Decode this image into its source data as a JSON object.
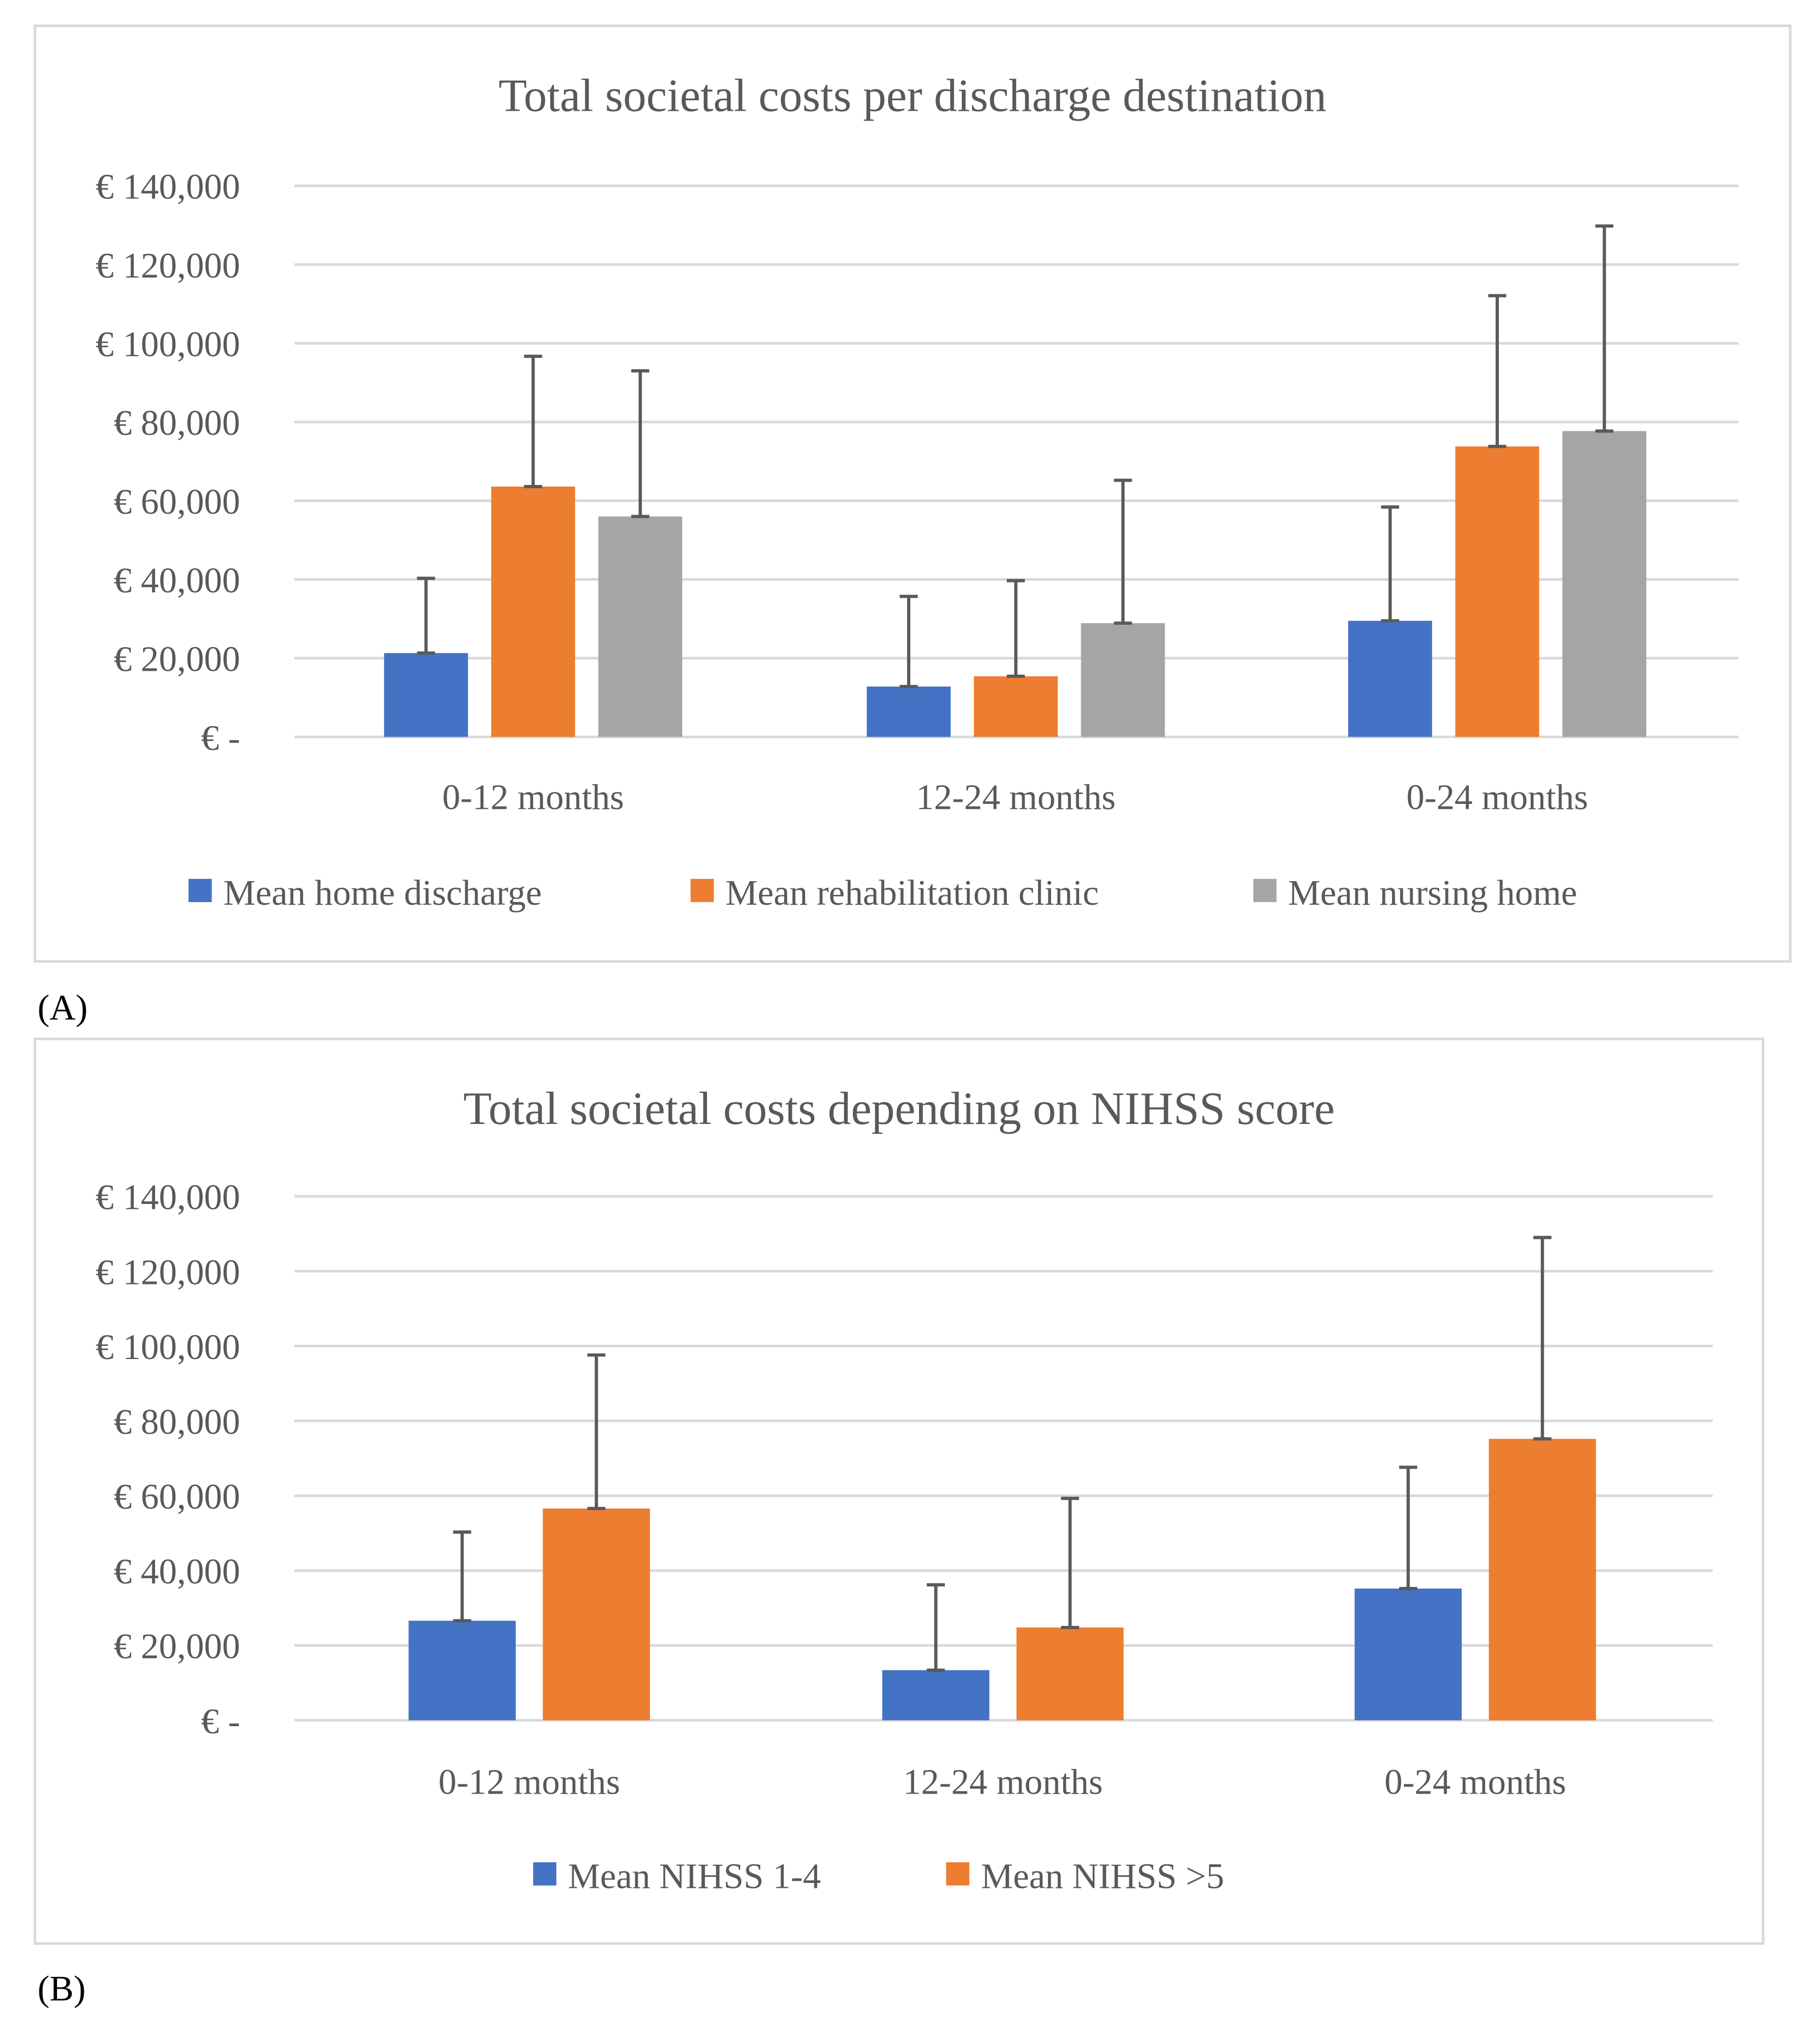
{
  "chart_data": [
    {
      "type": "bar",
      "panel_label": "(A)",
      "title": "Total societal costs per discharge destination",
      "xlabel": "",
      "ylabel": "",
      "ylim": [
        0,
        140000
      ],
      "yticks": [
        0,
        20000,
        40000,
        60000,
        80000,
        100000,
        120000,
        140000
      ],
      "ytick_labels": [
        "€ -",
        "€ 20,000",
        "€ 40,000",
        "€ 60,000",
        "€ 80,000",
        "€ 100,000",
        "€ 120,000",
        "€ 140,000"
      ],
      "grid": true,
      "legend_position": "bottom",
      "categories": [
        "0-12 months",
        "12-24 months",
        "0-24 months"
      ],
      "series": [
        {
          "name": "Mean home discharge",
          "color": "#4472C4",
          "values": [
            21300,
            12800,
            29500
          ],
          "error_upper": [
            40300,
            35700,
            58400
          ]
        },
        {
          "name": "Mean rehabilitation clinic",
          "color": "#ED7D31",
          "values": [
            63600,
            15400,
            73800
          ],
          "error_upper": [
            96700,
            39700,
            112100
          ]
        },
        {
          "name": "Mean nursing home",
          "color": "#A5A5A5",
          "values": [
            56000,
            28900,
            77700
          ],
          "error_upper": [
            93000,
            65200,
            129800
          ]
        }
      ]
    },
    {
      "type": "bar",
      "panel_label": "(B)",
      "title": "Total societal costs depending on NIHSS score",
      "xlabel": "",
      "ylabel": "",
      "ylim": [
        0,
        140000
      ],
      "yticks": [
        0,
        20000,
        40000,
        60000,
        80000,
        100000,
        120000,
        140000
      ],
      "ytick_labels": [
        "€ -",
        "€ 20,000",
        "€ 40,000",
        "€ 60,000",
        "€ 80,000",
        "€ 100,000",
        "€ 120,000",
        "€ 140,000"
      ],
      "grid": true,
      "legend_position": "bottom",
      "categories": [
        "0-12 months",
        "12-24 months",
        "0-24 months"
      ],
      "series": [
        {
          "name": "Mean NIHSS  1-4",
          "color": "#4472C4",
          "values": [
            26600,
            13400,
            35200
          ],
          "error_upper": [
            50300,
            36200,
            67600
          ]
        },
        {
          "name": "Mean NIHSS  >5",
          "color": "#ED7D31",
          "values": [
            56600,
            24800,
            75200
          ],
          "error_upper": [
            97600,
            59300,
            129000
          ]
        }
      ]
    }
  ]
}
